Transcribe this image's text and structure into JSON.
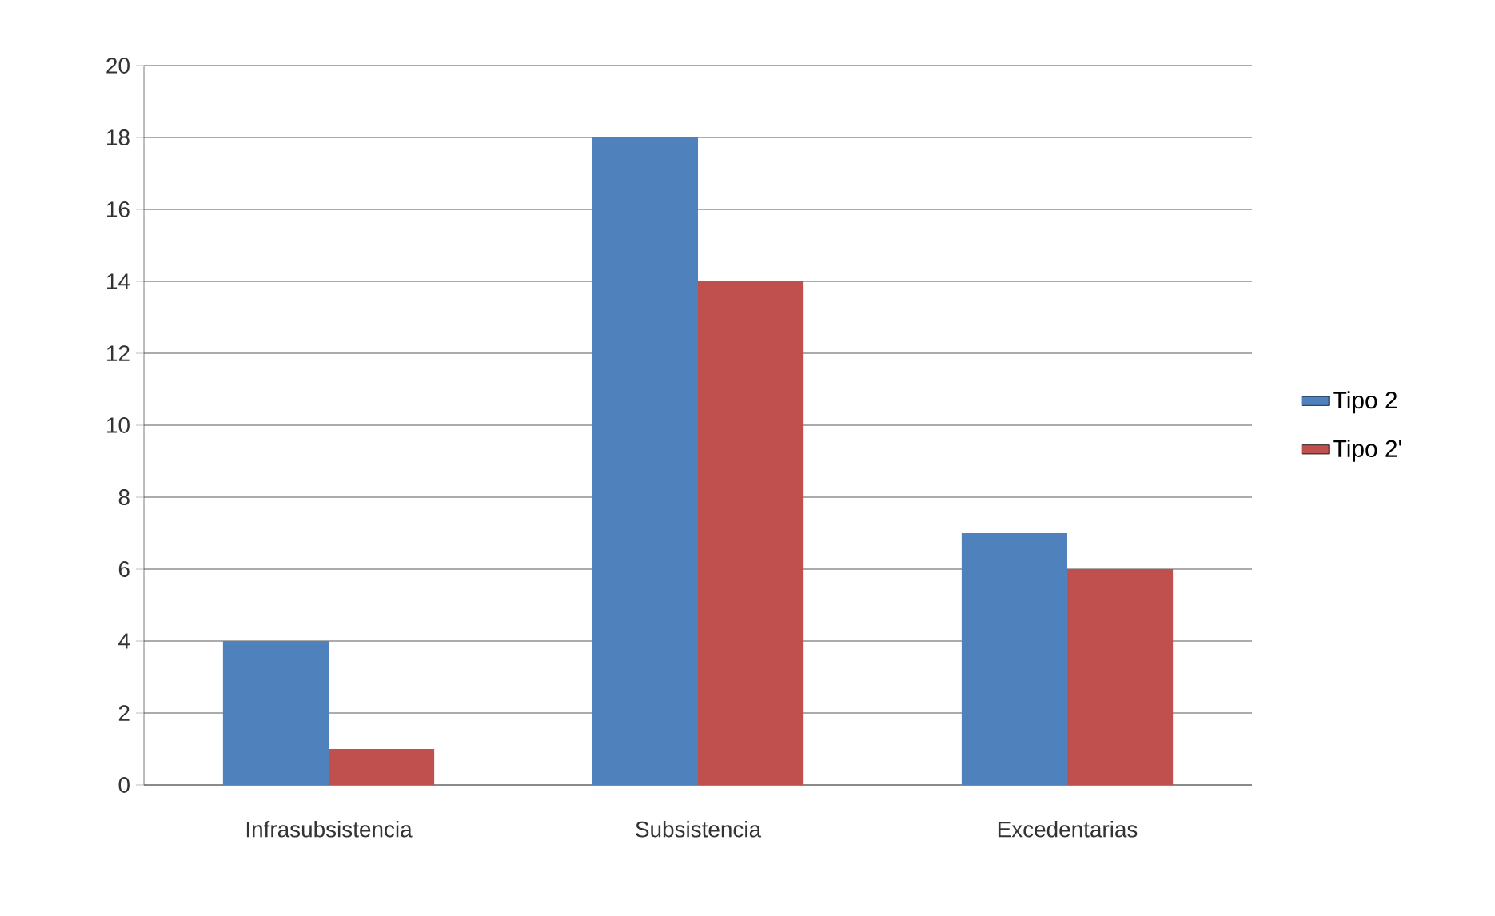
{
  "chart_data": {
    "type": "bar",
    "categories": [
      "Infrasubsistencia",
      "Subsistencia",
      "Excedentarias"
    ],
    "series": [
      {
        "name": "Tipo 2",
        "color": "#4f81bd",
        "values": [
          4,
          18,
          7
        ]
      },
      {
        "name": "Tipo 2'",
        "color": "#c0504d",
        "values": [
          1,
          14,
          6
        ]
      }
    ],
    "ylim": [
      0,
      20
    ],
    "yticks": [
      0,
      2,
      4,
      6,
      8,
      10,
      12,
      14,
      16,
      18,
      20
    ],
    "grid": "y",
    "legend": "right"
  }
}
